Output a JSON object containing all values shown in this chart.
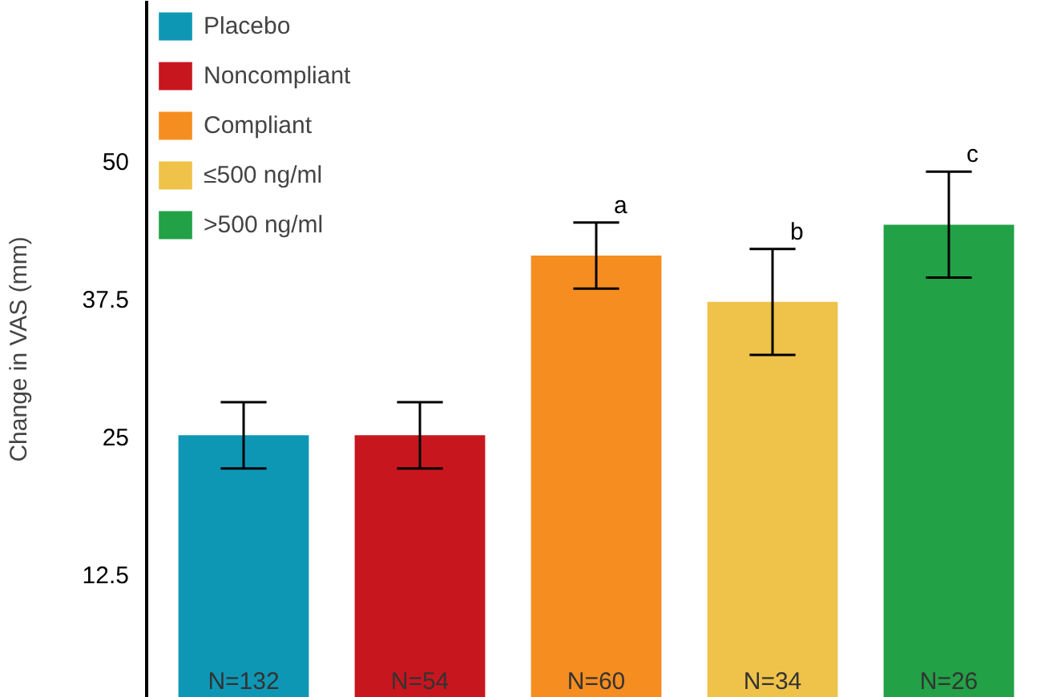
{
  "chart_data": {
    "type": "bar",
    "ylabel": "Change in VAS (mm)",
    "categories": [
      null,
      null,
      null,
      null,
      null
    ],
    "series": [
      {
        "name": "Placebo",
        "color": "#0e97b5",
        "values": [
          25.1,
          null,
          null,
          null,
          null
        ],
        "errors": [
          3,
          null,
          null,
          null,
          null
        ]
      },
      {
        "name": "Noncompliant",
        "color": "#c8161e",
        "values": [
          null,
          25.1,
          null,
          null,
          null
        ],
        "errors": [
          null,
          3,
          null,
          null,
          null
        ]
      },
      {
        "name": "Compliant",
        "color": "#f68d20",
        "values": [
          null,
          null,
          41.4,
          null,
          null
        ],
        "errors": [
          null,
          null,
          3,
          null,
          null
        ]
      },
      {
        "name": "≤500 ng/ml",
        "color": "#efc24a",
        "values": [
          null,
          null,
          null,
          37.2,
          null
        ],
        "errors": [
          null,
          null,
          null,
          4.8,
          null
        ]
      },
      {
        "name": ">500 ng/ml",
        "color": "#22a146",
        "values": [
          null,
          null,
          null,
          null,
          44.2
        ],
        "errors": [
          null,
          null,
          null,
          null,
          4.8
        ]
      }
    ],
    "stacked": true,
    "ylim": [
      1.3,
      64.5
    ],
    "yticks": [
      12.5,
      25,
      37.5,
      50
    ],
    "tick_labels": "y",
    "grid": false,
    "legend": "top left",
    "annotations": [
      "a",
      "b",
      "c",
      "N=132",
      "N=54",
      "N=60",
      "N=34",
      "N=26"
    ]
  }
}
